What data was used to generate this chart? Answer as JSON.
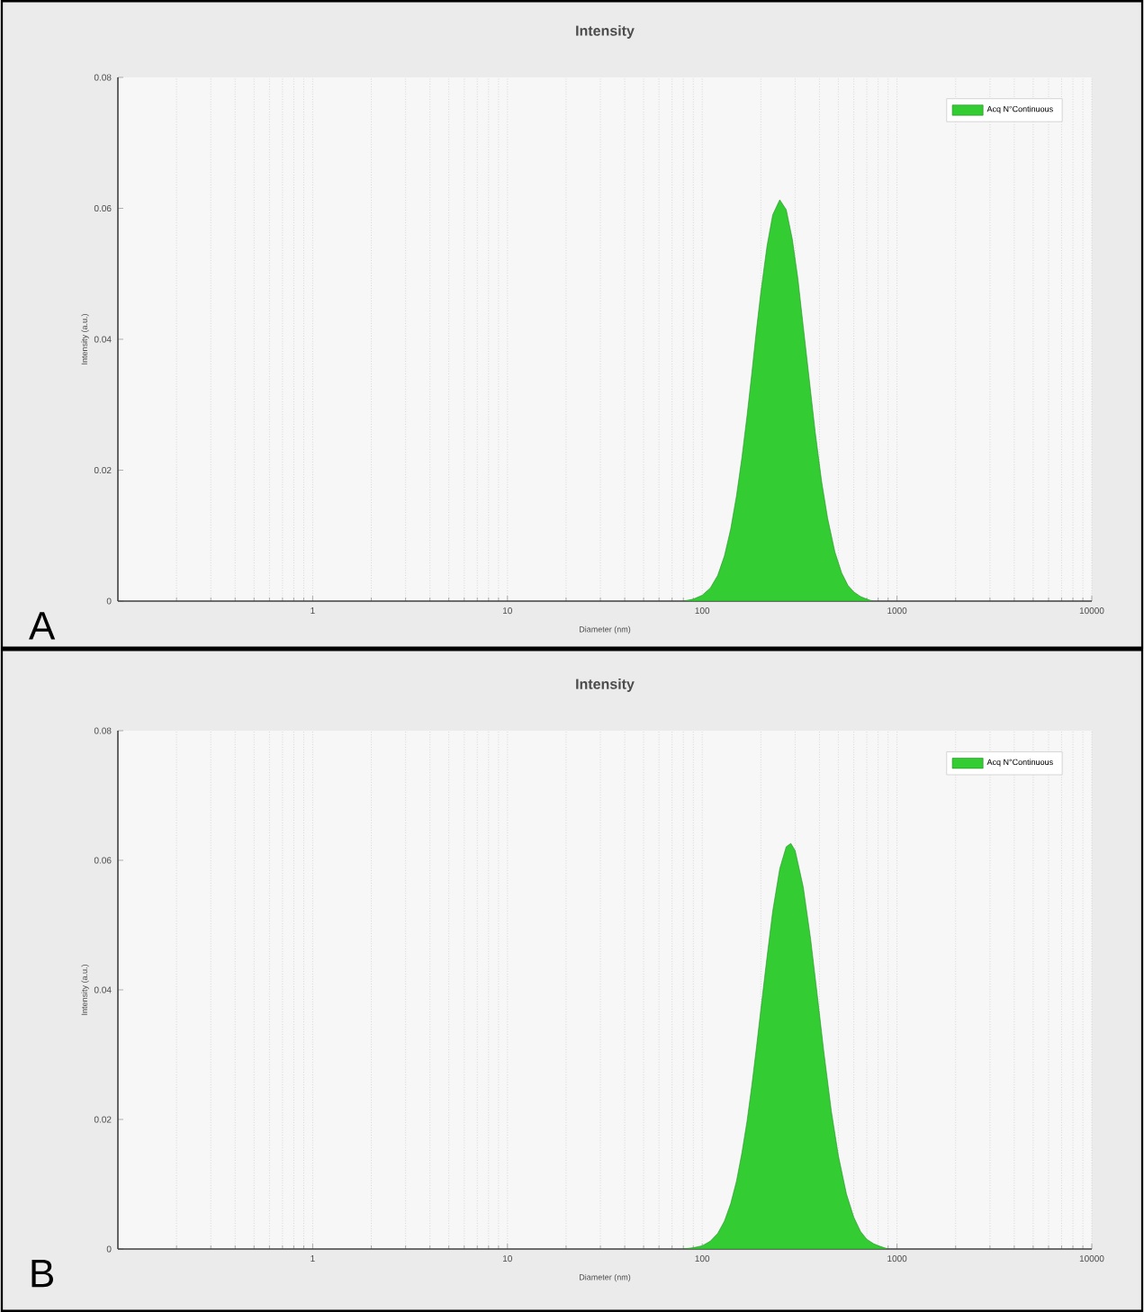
{
  "chart_data": [
    {
      "type": "area",
      "title": "Intensity",
      "xlabel": "Diameter (nm)",
      "ylabel": "Intensity (a.u.)",
      "xlim": [
        0.1,
        10000
      ],
      "ylim": [
        0,
        0.08
      ],
      "xticks": [
        1,
        10,
        100,
        1000,
        10000
      ],
      "yticks": [
        0,
        0.02,
        0.04,
        0.06,
        0.08
      ],
      "log": "x",
      "grid": "x",
      "legend": "top right",
      "annotations": [
        "A"
      ],
      "series": [
        {
          "name": "Acq N°Continuous",
          "color": "#33cc33",
          "x": [
            80,
            90,
            100,
            110,
            120,
            130,
            140,
            150,
            160,
            170,
            180,
            190,
            200,
            215,
            230,
            250,
            270,
            290,
            310,
            330,
            350,
            380,
            410,
            440,
            480,
            520,
            560,
            600,
            650,
            700,
            750
          ],
          "values": [
            0,
            0.0003,
            0.0009,
            0.002,
            0.0039,
            0.0069,
            0.011,
            0.0161,
            0.022,
            0.0284,
            0.035,
            0.0415,
            0.0472,
            0.0542,
            0.059,
            0.0613,
            0.0598,
            0.0553,
            0.0492,
            0.042,
            0.0353,
            0.0259,
            0.0183,
            0.0127,
            0.0075,
            0.0043,
            0.0024,
            0.0014,
            0.0007,
            0.0003,
            0
          ]
        }
      ]
    },
    {
      "type": "area",
      "title": "Intensity",
      "xlabel": "Diameter (nm)",
      "ylabel": "Intensity (a.u.)",
      "xlim": [
        0.1,
        10000
      ],
      "ylim": [
        0,
        0.08
      ],
      "xticks": [
        1,
        10,
        100,
        1000,
        10000
      ],
      "yticks": [
        0,
        0.02,
        0.04,
        0.06,
        0.08
      ],
      "log": "x",
      "grid": "x",
      "legend": "top right",
      "annotations": [
        "B"
      ],
      "series": [
        {
          "name": "Acq N°Continuous",
          "color": "#33cc33",
          "x": [
            80,
            90,
            100,
            110,
            120,
            130,
            140,
            150,
            160,
            170,
            180,
            190,
            200,
            215,
            230,
            250,
            270,
            285,
            300,
            330,
            360,
            390,
            420,
            460,
            500,
            550,
            600,
            650,
            700,
            760,
            820,
            900
          ],
          "values": [
            0,
            0.0002,
            0.0005,
            0.0012,
            0.0024,
            0.0043,
            0.007,
            0.0105,
            0.0149,
            0.0198,
            0.0254,
            0.0312,
            0.037,
            0.045,
            0.0521,
            0.0587,
            0.0621,
            0.0626,
            0.0615,
            0.0559,
            0.0479,
            0.0391,
            0.0307,
            0.0213,
            0.0144,
            0.0085,
            0.0049,
            0.0027,
            0.0015,
            0.0008,
            0.0004,
            0
          ]
        }
      ]
    }
  ]
}
